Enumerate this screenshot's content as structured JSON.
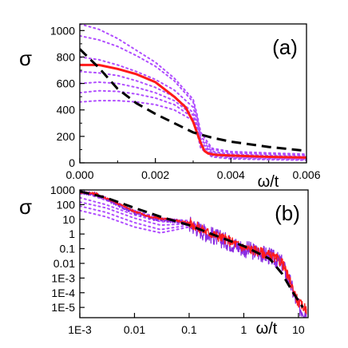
{
  "chart_data": [
    {
      "type": "line",
      "panel_label": "(a)",
      "ylabel": "σ",
      "xlabel": "ω/t",
      "xlim": [
        0.0,
        0.006
      ],
      "ylim": [
        0,
        1050
      ],
      "x_ticks": [
        0.0,
        0.002,
        0.004,
        0.006
      ],
      "x_tick_labels": [
        "0.000",
        "0.002",
        "0.004",
        "0.006"
      ],
      "y_ticks": [
        0,
        200,
        400,
        600,
        800,
        1000
      ],
      "y_tick_labels": [
        "0",
        "200",
        "400",
        "600",
        "800",
        "1000"
      ],
      "series": [
        {
          "style": "solid",
          "color": "#ff1a1a",
          "x": [
            0.0,
            0.0005,
            0.001,
            0.0015,
            0.002,
            0.0025,
            0.0028,
            0.003,
            0.0031,
            0.0032,
            0.0033,
            0.0034,
            0.0036,
            0.004,
            0.005,
            0.006
          ],
          "y": [
            740,
            740,
            710,
            670,
            610,
            500,
            420,
            310,
            230,
            150,
            90,
            70,
            60,
            55,
            45,
            40
          ]
        },
        {
          "style": "dashed",
          "color": "#000000",
          "x": [
            0.0,
            0.0005,
            0.001,
            0.0015,
            0.002,
            0.0025,
            0.003,
            0.0035,
            0.004,
            0.005,
            0.006
          ],
          "y": [
            860,
            720,
            560,
            450,
            370,
            300,
            230,
            190,
            160,
            120,
            90
          ]
        },
        {
          "style": "dotted",
          "color": "#b04dff",
          "x": [
            0.0,
            0.0005,
            0.001,
            0.0015,
            0.002,
            0.0025,
            0.003,
            0.0031,
            0.0032,
            0.0035,
            0.004,
            0.005,
            0.006
          ],
          "y": [
            1050,
            1010,
            940,
            850,
            760,
            640,
            480,
            370,
            230,
            110,
            85,
            75,
            65
          ]
        },
        {
          "style": "dotted",
          "color": "#b04dff",
          "x": [
            0.0,
            0.0005,
            0.001,
            0.0015,
            0.002,
            0.0025,
            0.003,
            0.0031,
            0.0032,
            0.0035,
            0.004,
            0.005,
            0.006
          ],
          "y": [
            960,
            930,
            880,
            810,
            730,
            620,
            460,
            350,
            200,
            100,
            75,
            65,
            55
          ]
        },
        {
          "style": "dotted",
          "color": "#b04dff",
          "x": [
            0.0,
            0.0005,
            0.001,
            0.0015,
            0.002,
            0.0025,
            0.003,
            0.0031,
            0.0032,
            0.0035,
            0.004,
            0.005,
            0.006
          ],
          "y": [
            800,
            780,
            740,
            690,
            630,
            550,
            420,
            320,
            180,
            85,
            65,
            55,
            45
          ]
        },
        {
          "style": "dotted",
          "color": "#b04dff",
          "x": [
            0.0,
            0.0005,
            0.001,
            0.0015,
            0.002,
            0.0025,
            0.003,
            0.0031,
            0.0032,
            0.0035,
            0.004,
            0.005,
            0.006
          ],
          "y": [
            690,
            680,
            660,
            620,
            570,
            500,
            380,
            290,
            160,
            75,
            55,
            45,
            38
          ]
        },
        {
          "style": "dotted",
          "color": "#b04dff",
          "x": [
            0.0,
            0.0005,
            0.001,
            0.0015,
            0.002,
            0.0025,
            0.003,
            0.0031,
            0.0032,
            0.0035,
            0.004,
            0.005,
            0.006
          ],
          "y": [
            600,
            610,
            600,
            570,
            530,
            470,
            360,
            270,
            140,
            65,
            45,
            38,
            32
          ]
        },
        {
          "style": "dotted",
          "color": "#b04dff",
          "x": [
            0.0,
            0.0005,
            0.001,
            0.0015,
            0.002,
            0.0025,
            0.003,
            0.0031,
            0.0032,
            0.0035,
            0.004,
            0.005,
            0.006
          ],
          "y": [
            530,
            545,
            540,
            520,
            490,
            440,
            340,
            250,
            120,
            55,
            38,
            30,
            25
          ]
        },
        {
          "style": "dotted",
          "color": "#b04dff",
          "x": [
            0.0,
            0.0005,
            0.001,
            0.0015,
            0.002,
            0.0025,
            0.003,
            0.0031,
            0.0032,
            0.0035,
            0.004,
            0.005,
            0.006
          ],
          "y": [
            460,
            470,
            470,
            460,
            440,
            400,
            320,
            230,
            110,
            45,
            30,
            24,
            20
          ]
        }
      ]
    },
    {
      "type": "line",
      "panel_label": "(b)",
      "ylabel": "σ",
      "xlabel": "ω/t",
      "xscale": "log",
      "yscale": "log",
      "xlim": [
        0.001,
        15
      ],
      "ylim": [
        2e-06,
        1000
      ],
      "x_ticks": [
        0.001,
        0.01,
        0.1,
        1,
        10
      ],
      "x_tick_labels": [
        "1E-3",
        "0.01",
        "0.1",
        "1",
        "10"
      ],
      "y_ticks": [
        1000,
        100,
        10,
        1,
        0.1,
        0.01,
        0.001,
        0.0001,
        1e-05
      ],
      "y_tick_labels": [
        "1000",
        "100",
        "10",
        "1",
        "0.1",
        "0.01",
        "1E-3",
        "1E-4",
        "1E-5"
      ],
      "series": [
        {
          "style": "noisy",
          "color": "#8a2be2",
          "noise": 0.6,
          "x": [
            0.001,
            0.002,
            0.005,
            0.01,
            0.02,
            0.05,
            0.1,
            0.2,
            0.5,
            1,
            2,
            3,
            5,
            7,
            10,
            14
          ],
          "y": [
            700,
            500,
            100,
            30,
            12,
            8,
            5,
            1.2,
            0.3,
            0.1,
            0.05,
            0.03,
            0.01,
            0.0005,
            1e-05,
            5e-06
          ]
        },
        {
          "style": "noisy",
          "color": "#ff1a1a",
          "noise": 0.35,
          "x": [
            0.001,
            0.002,
            0.005,
            0.01,
            0.02,
            0.05,
            0.1,
            0.2,
            0.5,
            1,
            2,
            3,
            5,
            7,
            10,
            14
          ],
          "y": [
            720,
            550,
            120,
            35,
            14,
            9,
            6,
            1.5,
            0.4,
            0.12,
            0.06,
            0.035,
            0.012,
            0.0006,
            2e-05,
            8e-06
          ]
        },
        {
          "style": "dashed",
          "color": "#000000",
          "x": [
            0.001,
            0.003,
            0.01,
            0.03,
            0.1,
            0.3,
            1,
            3,
            5,
            8,
            12
          ],
          "y": [
            800,
            300,
            60,
            15,
            4,
            0.8,
            0.15,
            0.02,
            0.002,
            0.0001,
            1e-05
          ]
        },
        {
          "style": "dotted",
          "color": "#b04dff",
          "x": [
            0.001,
            0.003,
            0.01,
            0.03,
            0.1,
            0.12,
            0.2
          ],
          "y": [
            800,
            200,
            40,
            12,
            8,
            5,
            3
          ]
        },
        {
          "style": "dotted",
          "color": "#b04dff",
          "x": [
            0.001,
            0.003,
            0.01,
            0.03,
            0.1,
            0.12,
            0.2
          ],
          "y": [
            300,
            100,
            20,
            7,
            6,
            4,
            2.5
          ]
        },
        {
          "style": "dotted",
          "color": "#b04dff",
          "x": [
            0.001,
            0.003,
            0.01,
            0.03,
            0.1,
            0.12,
            0.2
          ],
          "y": [
            150,
            60,
            12,
            4,
            5,
            3.5,
            2
          ]
        },
        {
          "style": "dotted",
          "color": "#b04dff",
          "x": [
            0.001,
            0.003,
            0.01,
            0.03,
            0.1,
            0.12,
            0.2
          ],
          "y": [
            80,
            30,
            6,
            2,
            4,
            3,
            1.8
          ]
        },
        {
          "style": "dotted",
          "color": "#b04dff",
          "x": [
            0.001,
            0.003,
            0.01,
            0.03,
            0.1,
            0.12,
            0.2
          ],
          "y": [
            40,
            15,
            3,
            1.2,
            3,
            2.5,
            1.6
          ]
        }
      ]
    }
  ]
}
